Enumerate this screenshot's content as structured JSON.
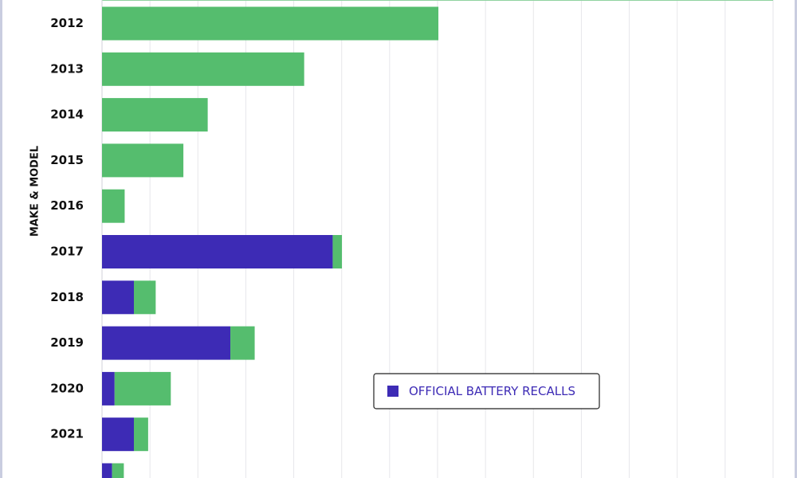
{
  "chart_data": {
    "type": "stacked-barh",
    "y_axis_label": "MAKE & MODEL",
    "categories": [
      "2012",
      "2013",
      "2014",
      "2015",
      "2016",
      "2017",
      "2018",
      "2019",
      "2020",
      "2021",
      null
    ],
    "series": [
      {
        "name": "OFFICIAL BATTERY RECALLS",
        "color": "#3d2bb5",
        "values": [
          0,
          0,
          0,
          0,
          0,
          275,
          38,
          153,
          15,
          38,
          12
        ]
      },
      {
        "color": "#55bd6e",
        "values": [
          401,
          241,
          126,
          97,
          27,
          11,
          26,
          29,
          67,
          17,
          14
        ]
      }
    ],
    "xlim": [
      0,
      800
    ],
    "grid": true
  }
}
